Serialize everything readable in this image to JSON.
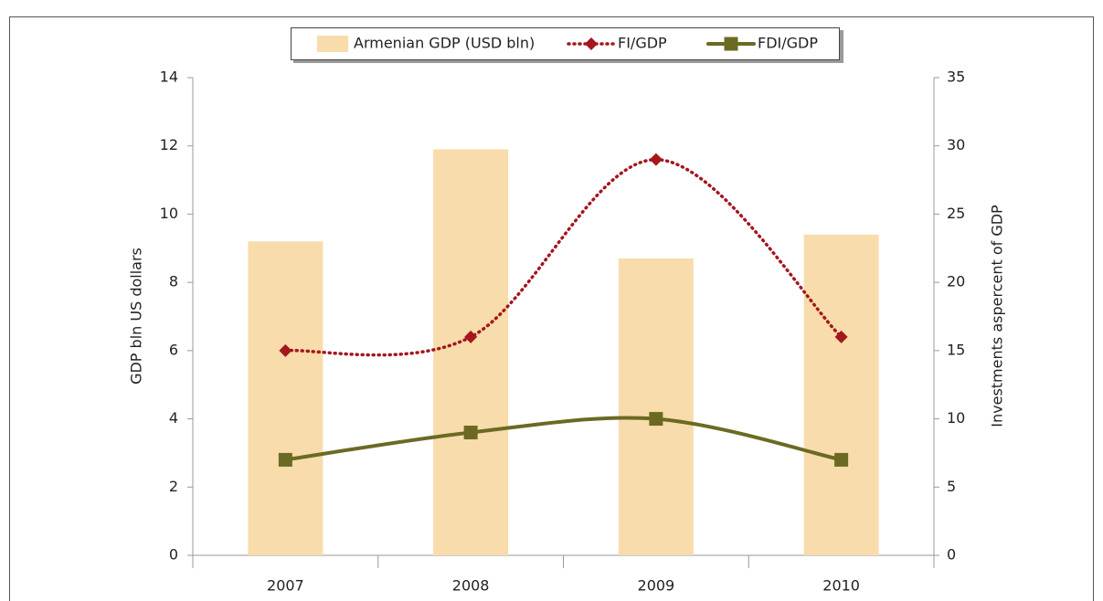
{
  "chart_data": {
    "type": "bar",
    "categories": [
      "2007",
      "2008",
      "2009",
      "2010"
    ],
    "y_label": "GDP bln US dollars",
    "y2_label": "Investments aspercent of GDP",
    "ylim": [
      0,
      14
    ],
    "yticks": [
      0,
      2,
      4,
      6,
      8,
      10,
      12,
      14
    ],
    "y2lim": [
      0,
      35
    ],
    "y2ticks": [
      0,
      5,
      10,
      15,
      20,
      25,
      30,
      35
    ],
    "legend": "top",
    "series": [
      {
        "name": "Armenian GDP (USD bln)",
        "type": "bar",
        "color": "#f8dcab",
        "values": [
          9.2,
          11.9,
          8.7,
          9.4
        ]
      },
      {
        "name": "FI/GDP",
        "type": "line",
        "axis": "y2",
        "marker": "diamond",
        "dashed": true,
        "color": "#a3171d",
        "values": [
          15,
          16,
          29,
          16
        ]
      },
      {
        "name": "FDI/GDP",
        "type": "line",
        "axis": "y2",
        "marker": "square",
        "dashed": false,
        "color": "#6b6a23",
        "values": [
          7,
          9,
          10,
          7
        ]
      }
    ]
  }
}
